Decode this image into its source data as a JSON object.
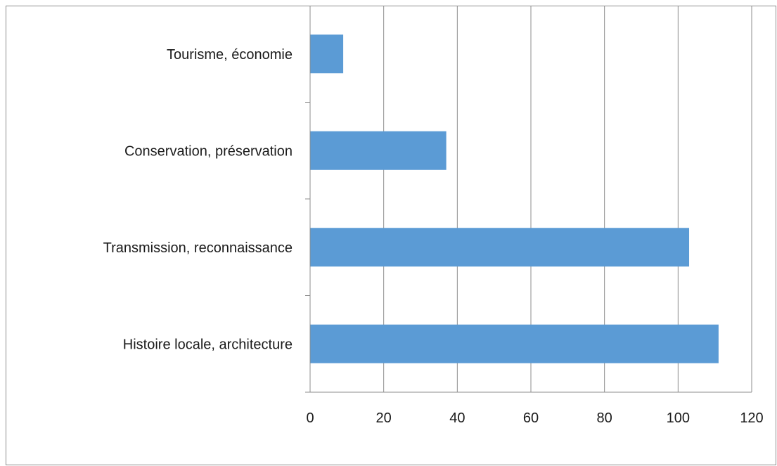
{
  "chart_data": {
    "type": "bar",
    "orientation": "horizontal",
    "categories": [
      "Tourisme, économie",
      "Conservation, préservation",
      "Transmission, reconnaissance",
      "Histoire locale, architecture"
    ],
    "values": [
      9,
      37,
      103,
      111
    ],
    "xlim": [
      0,
      120
    ],
    "xticks": [
      "0",
      "20",
      "40",
      "60",
      "80",
      "100",
      "120"
    ],
    "grid": "vertical",
    "bar_color": "#5b9bd5",
    "title": "",
    "xlabel": "",
    "ylabel": ""
  }
}
